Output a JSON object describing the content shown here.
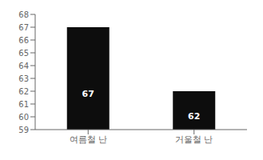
{
  "chart_data": {
    "type": "bar",
    "categories": [
      "여름철 난",
      "거울철 난"
    ],
    "values": [
      67,
      62
    ],
    "color": "#0d0d0d",
    "ylim": [
      59,
      68
    ],
    "yticks": [
      59,
      60,
      61,
      62,
      63,
      64,
      65,
      66,
      67,
      68
    ],
    "data_labels": true,
    "grid": false
  }
}
